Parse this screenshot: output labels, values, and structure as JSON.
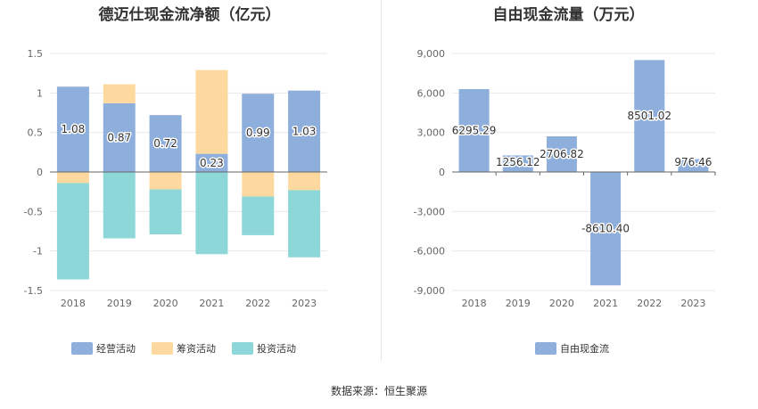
{
  "source_label": "数据来源：恒生聚源",
  "colors": {
    "operating": "#8eaedb",
    "financing": "#fdd9a0",
    "investing": "#8dd7d8",
    "fcf": "#8eaedb",
    "grid": "#e8e8e8",
    "axis": "#666666"
  },
  "chart_data": [
    {
      "type": "bar",
      "stacked": true,
      "title": "德迈仕现金流净额（亿元）",
      "categories": [
        "2018",
        "2019",
        "2020",
        "2021",
        "2022",
        "2023"
      ],
      "ylim": [
        -1.5,
        1.5
      ],
      "yticks": [
        "1.5",
        "1",
        "0.5",
        "0",
        "-0.5",
        "-1",
        "-1.5"
      ],
      "ytick_values": [
        1.5,
        1,
        0.5,
        0,
        -0.5,
        -1,
        -1.5
      ],
      "series": [
        {
          "name": "经营活动",
          "key": "operating",
          "values": [
            1.08,
            0.87,
            0.72,
            0.23,
            0.99,
            1.03
          ],
          "labels": [
            "1.08",
            "0.87",
            "0.72",
            "0.23",
            "0.99",
            "1.03"
          ]
        },
        {
          "name": "筹资活动",
          "key": "financing",
          "values": [
            -0.14,
            0.24,
            -0.22,
            1.06,
            -0.31,
            -0.23
          ]
        },
        {
          "name": "投资活动",
          "key": "investing",
          "values": [
            -1.22,
            -0.84,
            -0.57,
            -1.04,
            -0.49,
            -0.85
          ]
        }
      ],
      "legend": [
        "经营活动",
        "筹资活动",
        "投资活动"
      ]
    },
    {
      "type": "bar",
      "title": "自由现金流量（万元）",
      "categories": [
        "2018",
        "2019",
        "2020",
        "2021",
        "2022",
        "2023"
      ],
      "ylim": [
        -9000,
        9000
      ],
      "yticks": [
        "9,000",
        "6,000",
        "3,000",
        "0",
        "-3,000",
        "-6,000",
        "-9,000"
      ],
      "ytick_values": [
        9000,
        6000,
        3000,
        0,
        -3000,
        -6000,
        -9000
      ],
      "series": [
        {
          "name": "自由现金流",
          "key": "fcf",
          "values": [
            6295.29,
            1256.12,
            2706.82,
            -8610.4,
            8501.02,
            976.46
          ],
          "labels": [
            "6295.29",
            "1256.12",
            "2706.82",
            "-8610.40",
            "8501.02",
            "976.46"
          ]
        }
      ],
      "legend": [
        "自由现金流"
      ]
    }
  ]
}
